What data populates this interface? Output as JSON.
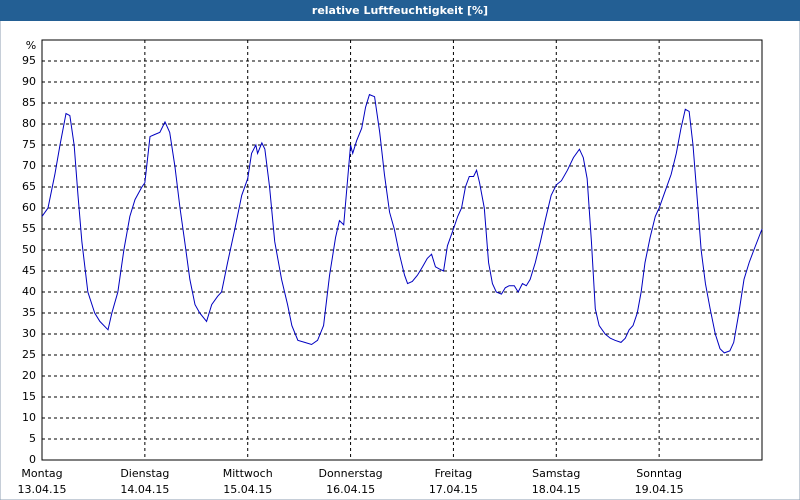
{
  "chart_data": {
    "type": "line",
    "title": "relative Luftfeuchtigkeit [%]",
    "y_label": "%",
    "x": [
      0,
      1.4,
      3.0,
      4.2,
      5.6,
      6.5,
      7.5,
      8.4,
      9.3,
      10.7,
      12.3,
      13.5,
      15.4,
      16.3,
      17.7,
      19.1,
      20.5,
      21.7,
      23.3,
      24.0,
      25.2,
      26.3,
      27.5,
      28.7,
      29.8,
      31.0,
      32.2,
      33.3,
      34.5,
      35.7,
      36.8,
      38.4,
      39.6,
      41.0,
      41.9,
      43.3,
      45.0,
      46.6,
      48.0,
      48.9,
      49.9,
      50.3,
      51.3,
      52.0,
      53.1,
      54.3,
      55.9,
      57.3,
      58.3,
      59.7,
      61.3,
      62.9,
      64.3,
      65.7,
      67.1,
      68.5,
      69.4,
      70.4,
      72.0,
      72.5,
      73.4,
      74.6,
      75.5,
      76.4,
      77.6,
      78.8,
      79.9,
      81.1,
      82.2,
      83.4,
      84.6,
      85.3,
      86.4,
      87.6,
      88.8,
      89.9,
      90.9,
      91.8,
      92.7,
      93.7,
      94.6,
      96.0,
      97.0,
      97.9,
      98.8,
      99.7,
      100.7,
      101.4,
      102.1,
      103.2,
      104.2,
      105.1,
      106.0,
      107.2,
      108.1,
      109.0,
      110.2,
      111.1,
      112.1,
      113.0,
      113.9,
      115.1,
      116.3,
      117.4,
      118.8,
      120.0,
      121.2,
      122.6,
      124.0,
      125.4,
      126.3,
      127.2,
      128.2,
      129.1,
      130.0,
      131.4,
      132.6,
      133.7,
      135.1,
      136.1,
      137.0,
      137.9,
      138.9,
      139.8,
      140.7,
      141.9,
      143.1,
      144.0,
      145.4,
      146.8,
      148.0,
      149.1,
      150.1,
      151.0,
      151.9,
      152.9,
      153.8,
      154.8,
      155.9,
      157.1,
      158.2,
      159.2,
      160.5,
      161.4,
      162.6,
      163.8,
      165.0,
      166.1,
      168.0
    ],
    "series": [
      {
        "name": "relative Luftfeuchtigkeit",
        "color": "#0000c0",
        "values": [
          58,
          60,
          68,
          75,
          82.5,
          82,
          75,
          63,
          52,
          40,
          35,
          33,
          31,
          35,
          40,
          50,
          58,
          62,
          65,
          66,
          77,
          77.5,
          78,
          80.5,
          78,
          70,
          60,
          52,
          43,
          37,
          35,
          33,
          37,
          39,
          40,
          47,
          55,
          63,
          67,
          73,
          75,
          73,
          75.5,
          74,
          65,
          52,
          43,
          37,
          32,
          28.5,
          28,
          27.5,
          28.5,
          32,
          44,
          53,
          57,
          56,
          75,
          73,
          76,
          79,
          84,
          87,
          86.5,
          78,
          68,
          59,
          55,
          49,
          44,
          42,
          42.5,
          44,
          46,
          48,
          49,
          46,
          45.5,
          45,
          51,
          55,
          58,
          60,
          65,
          67.5,
          67.5,
          69,
          66,
          60,
          47,
          42,
          40,
          39.5,
          41,
          41.5,
          41.5,
          40,
          42,
          41.5,
          43,
          47,
          52,
          57,
          63,
          65.5,
          66.5,
          69,
          72,
          74,
          72,
          67,
          52,
          36,
          32,
          30,
          29,
          28.5,
          28,
          29,
          31,
          32,
          35,
          40,
          47,
          53,
          58,
          60,
          64,
          68,
          73,
          79,
          83.5,
          83,
          75,
          62,
          50,
          42,
          36,
          30,
          26.5,
          25.5,
          26,
          28,
          35,
          43,
          47,
          50,
          55
        ]
      }
    ],
    "xlim": [
      0,
      168
    ],
    "ylim": [
      0,
      100
    ],
    "xticks": [
      {
        "value": 0,
        "label": "Montag",
        "date": "13.04.15"
      },
      {
        "value": 24,
        "label": "Dienstag",
        "date": "14.04.15"
      },
      {
        "value": 48,
        "label": "Mittwoch",
        "date": "15.04.15"
      },
      {
        "value": 72,
        "label": "Donnerstag",
        "date": "16.04.15"
      },
      {
        "value": 96,
        "label": "Freitag",
        "date": "17.04.15"
      },
      {
        "value": 120,
        "label": "Samstag",
        "date": "18.04.15"
      },
      {
        "value": 144,
        "label": "Sonntag",
        "date": "19.04.15"
      }
    ],
    "yticks": [
      0,
      5,
      10,
      15,
      20,
      25,
      30,
      35,
      40,
      45,
      50,
      55,
      60,
      65,
      70,
      75,
      80,
      85,
      90,
      95
    ],
    "grid": true
  }
}
